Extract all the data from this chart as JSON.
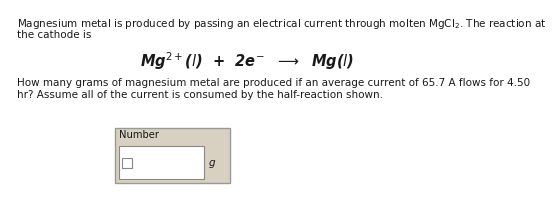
{
  "bg_color": "#ffffff",
  "outer_box_color": "#d8d0c0",
  "inner_box_color": "#ffffff",
  "border_color": "#888888",
  "text_color": "#1a1a1a",
  "line1": "Magnesium metal is produced by passing an electrical current through molten MgCl$_2$. The reaction at",
  "line2": "the cathode is",
  "equation": "Mg$^{2+}$($l$)  +  2e$^{-}$  $\\longrightarrow$  Mg($l$)",
  "line3": "How many grams of magnesium metal are produced if an average current of 65.7 A flows for 4.50",
  "line4": "hr? Assume all of the current is consumed by the half-reaction shown.",
  "label_number": "Number",
  "label_unit": "g",
  "font_size_body": 7.5,
  "font_size_eq": 10.5,
  "font_size_label": 7.2,
  "font_size_unit": 7.5
}
